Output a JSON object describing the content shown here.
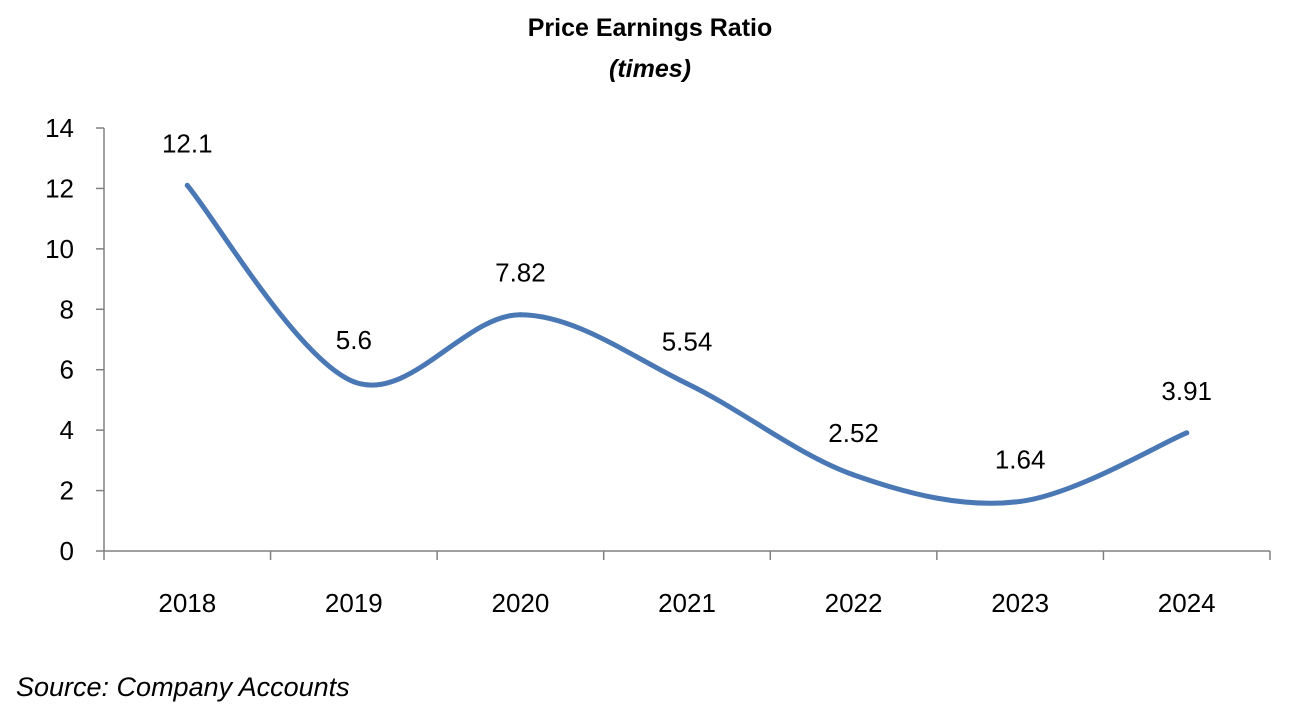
{
  "chart_data": {
    "type": "line",
    "title": "Price Earnings Ratio",
    "subtitle": "(times)",
    "categories": [
      "2018",
      "2019",
      "2020",
      "2021",
      "2022",
      "2023",
      "2024"
    ],
    "series": [
      {
        "values": [
          12.1,
          5.6,
          7.82,
          5.54,
          2.52,
          1.64,
          3.91
        ],
        "labels": [
          "12.1",
          "5.6",
          "7.82",
          "5.54",
          "2.52",
          "1.64",
          "3.91"
        ],
        "color": "#4a78b5",
        "smooth": true
      }
    ],
    "y_ticks": [
      "0",
      "2",
      "4",
      "6",
      "8",
      "10",
      "12",
      "14"
    ],
    "ylim": [
      0,
      14
    ],
    "grid": false,
    "legend": "none",
    "source": "Source: Company Accounts"
  }
}
